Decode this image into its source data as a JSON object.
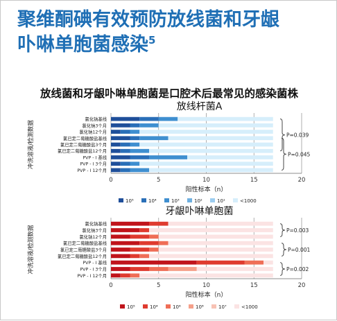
{
  "header": {
    "title_line1": "聚维酮碘有效预防放线菌和牙龈",
    "title_line2": "卟啉单胞菌感染",
    "title_ref": "5",
    "subtitle": "放线菌和牙龈卟啉单胞菌是口腔术后最常见的感染菌株"
  },
  "colors": {
    "title": "#1f6fb5",
    "chart1_series": [
      "#1f4f9a",
      "#2a6fb8",
      "#3f8fd0",
      "#6fb0e0",
      "#9ccdf0",
      "#d6eefb"
    ],
    "chart2_series": [
      "#c0141b",
      "#df3b2f",
      "#ef6e57",
      "#f5a08a",
      "#f7c2b4",
      "#fbe3e3"
    ]
  },
  "chart_data": [
    {
      "type": "bar",
      "orientation": "horizontal",
      "stacked": true,
      "title": "放线杆菌A",
      "xlabel": "阳性标本（n）",
      "ylabel": "冲洗溶液/检测数据",
      "xlim": [
        0,
        20
      ],
      "xticks": [
        "0",
        "5",
        "10",
        "15",
        "20"
      ],
      "grid": true,
      "legend_position": "bottom",
      "categories": [
        "氯化钠基线",
        "氯化钠3个月",
        "氯化钠12个月",
        "氯已定二葡糖酸盐基线",
        "氯已定二葡糖酸盐3个月",
        "氯已定二葡糖酸盐12个月",
        "PVP - I  基线",
        "PVP - I  3个月",
        "PVP - I  12个月"
      ],
      "series": [
        {
          "name": "10⁵",
          "values": [
            3,
            2,
            1,
            2,
            1,
            1,
            2,
            1,
            1
          ]
        },
        {
          "name": "10⁴",
          "values": [
            2,
            1,
            1,
            1,
            1,
            1,
            2,
            1,
            1
          ]
        },
        {
          "name": "10³",
          "values": [
            2,
            2,
            1,
            3,
            1,
            2,
            4,
            1,
            2
          ]
        },
        {
          "name": "10²",
          "values": [
            0,
            0,
            0,
            0,
            0,
            0,
            0,
            0,
            0
          ]
        },
        {
          "name": "10¹",
          "values": [
            0,
            0,
            0,
            0,
            0,
            0,
            0,
            0,
            0
          ]
        },
        {
          "name": "<1000",
          "values": [
            10,
            12,
            14,
            11,
            14,
            13,
            9,
            14,
            13
          ]
        }
      ],
      "annotations": [
        {
          "text": "P=0.039",
          "group": [
            0,
            5
          ]
        },
        {
          "text": "P=0.045",
          "group": [
            3,
            8
          ]
        }
      ]
    },
    {
      "type": "bar",
      "orientation": "horizontal",
      "stacked": true,
      "title": "牙龈卟啉单胞菌",
      "xlabel": "阳性标本（n）",
      "ylabel": "冲洗溶液/检测数据",
      "xlim": [
        0,
        20
      ],
      "xticks": [
        "0",
        "5",
        "10",
        "15",
        "20"
      ],
      "grid": true,
      "legend_position": "bottom",
      "categories": [
        "氯化钠基线",
        "氯化钠3个月",
        "氯化钠12个月",
        "氯已定二葡糖酸盐基线",
        "氯已定二葡糖酸盐3个月",
        "氯已定二葡糖酸盐12个月",
        "PVP - I  基线",
        "PVP - I  3个月",
        "PVP - I  12个月"
      ],
      "series": [
        {
          "name": "10⁵",
          "values": [
            4,
            3,
            2,
            3,
            2,
            2,
            9,
            2,
            1
          ]
        },
        {
          "name": "10⁴",
          "values": [
            2,
            1,
            2,
            2,
            2,
            1,
            5,
            2,
            1
          ]
        },
        {
          "name": "10⁶",
          "values": [
            0,
            0,
            1,
            1,
            1,
            1,
            2,
            2,
            1
          ]
        },
        {
          "name": "10⁸",
          "values": [
            0,
            0,
            0,
            0,
            0,
            0,
            0,
            3,
            0
          ]
        },
        {
          "name": "10⁷",
          "values": [
            0,
            0,
            0,
            0,
            0,
            0,
            0,
            0,
            0
          ]
        },
        {
          "name": "<1000",
          "values": [
            11,
            13,
            12,
            11,
            12,
            13,
            1,
            8,
            14
          ]
        }
      ],
      "annotations": [
        {
          "text": "P=0.003",
          "group": [
            0,
            2
          ]
        },
        {
          "text": "P=0.001",
          "group": [
            3,
            5
          ]
        },
        {
          "text": "P=0.002",
          "group": [
            6,
            8
          ]
        }
      ]
    }
  ]
}
